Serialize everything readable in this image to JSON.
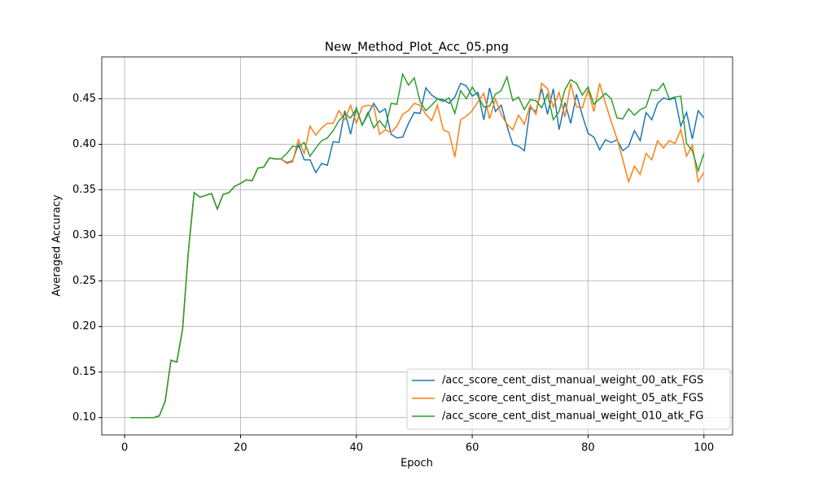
{
  "chart_data": {
    "type": "line",
    "title": "New_Method_Plot_Acc_05.png",
    "x_label": "Epoch",
    "y_label": "Averaged Accuracy",
    "x": [
      1,
      2,
      3,
      4,
      5,
      6,
      7,
      8,
      9,
      10,
      11,
      12,
      13,
      14,
      15,
      16,
      17,
      18,
      19,
      20,
      21,
      22,
      23,
      24,
      25,
      26,
      27,
      28,
      29,
      30,
      31,
      32,
      33,
      34,
      35,
      36,
      37,
      38,
      39,
      40,
      41,
      42,
      43,
      44,
      45,
      46,
      47,
      48,
      49,
      50,
      51,
      52,
      53,
      54,
      55,
      56,
      57,
      58,
      59,
      60,
      61,
      62,
      63,
      64,
      65,
      66,
      67,
      68,
      69,
      70,
      71,
      72,
      73,
      74,
      75,
      76,
      77,
      78,
      79,
      80,
      81,
      82,
      83,
      84,
      85,
      86,
      87,
      88,
      89,
      90,
      91,
      92,
      93,
      94,
      95,
      96,
      97,
      98,
      99,
      100
    ],
    "series": [
      {
        "name": "/acc_score_cent_dist_manual_weight_00_atk_FGS",
        "color": "#1f77b4",
        "values": [
          0.1,
          0.1,
          0.1,
          0.1,
          0.1,
          0.102,
          0.118,
          0.163,
          0.161,
          0.197,
          0.282,
          0.347,
          0.342,
          0.344,
          0.346,
          0.329,
          0.345,
          0.347,
          0.354,
          0.357,
          0.361,
          0.36,
          0.374,
          0.375,
          0.385,
          0.384,
          0.384,
          0.38,
          0.382,
          0.4,
          0.383,
          0.383,
          0.369,
          0.379,
          0.377,
          0.403,
          0.402,
          0.437,
          0.411,
          0.44,
          0.421,
          0.433,
          0.445,
          0.435,
          0.439,
          0.411,
          0.407,
          0.408,
          0.423,
          0.435,
          0.434,
          0.462,
          0.454,
          0.45,
          0.449,
          0.445,
          0.452,
          0.467,
          0.464,
          0.453,
          0.457,
          0.427,
          0.462,
          0.436,
          0.443,
          0.42,
          0.4,
          0.398,
          0.393,
          0.44,
          0.436,
          0.461,
          0.433,
          0.461,
          0.416,
          0.446,
          0.423,
          0.455,
          0.432,
          0.412,
          0.408,
          0.394,
          0.405,
          0.402,
          0.405,
          0.393,
          0.398,
          0.415,
          0.404,
          0.435,
          0.427,
          0.445,
          0.451,
          0.449,
          0.451,
          0.42,
          0.435,
          0.406,
          0.437,
          0.429
        ]
      },
      {
        "name": "/acc_score_cent_dist_manual_weight_05_atk_FGS",
        "color": "#ff7f0e",
        "values": [
          0.1,
          0.1,
          0.1,
          0.1,
          0.1,
          0.102,
          0.118,
          0.163,
          0.161,
          0.197,
          0.282,
          0.347,
          0.342,
          0.344,
          0.346,
          0.329,
          0.345,
          0.347,
          0.354,
          0.357,
          0.361,
          0.36,
          0.374,
          0.375,
          0.385,
          0.384,
          0.384,
          0.379,
          0.381,
          0.405,
          0.39,
          0.42,
          0.41,
          0.418,
          0.423,
          0.423,
          0.437,
          0.427,
          0.443,
          0.423,
          0.441,
          0.443,
          0.442,
          0.411,
          0.416,
          0.413,
          0.42,
          0.433,
          0.437,
          0.445,
          0.443,
          0.433,
          0.426,
          0.443,
          0.416,
          0.413,
          0.386,
          0.427,
          0.431,
          0.437,
          0.447,
          0.456,
          0.428,
          0.45,
          0.433,
          0.422,
          0.416,
          0.432,
          0.422,
          0.443,
          0.433,
          0.467,
          0.461,
          0.441,
          0.457,
          0.43,
          0.467,
          0.441,
          0.44,
          0.46,
          0.436,
          0.467,
          0.445,
          0.425,
          0.406,
          0.383,
          0.359,
          0.376,
          0.367,
          0.39,
          0.383,
          0.404,
          0.396,
          0.404,
          0.401,
          0.416,
          0.387,
          0.399,
          0.359,
          0.369
        ]
      },
      {
        "name": "/acc_score_cent_dist_manual_weight_010_atk_FG",
        "color": "#2ca02c",
        "values": [
          0.1,
          0.1,
          0.1,
          0.1,
          0.1,
          0.102,
          0.118,
          0.163,
          0.161,
          0.197,
          0.282,
          0.347,
          0.342,
          0.344,
          0.346,
          0.329,
          0.345,
          0.347,
          0.354,
          0.357,
          0.361,
          0.36,
          0.374,
          0.375,
          0.385,
          0.384,
          0.384,
          0.39,
          0.398,
          0.397,
          0.402,
          0.387,
          0.396,
          0.404,
          0.407,
          0.415,
          0.426,
          0.433,
          0.429,
          0.439,
          0.421,
          0.435,
          0.418,
          0.426,
          0.418,
          0.445,
          0.444,
          0.477,
          0.465,
          0.473,
          0.447,
          0.437,
          0.443,
          0.45,
          0.447,
          0.451,
          0.434,
          0.459,
          0.45,
          0.463,
          0.453,
          0.441,
          0.442,
          0.455,
          0.459,
          0.474,
          0.448,
          0.452,
          0.438,
          0.449,
          0.448,
          0.44,
          0.455,
          0.427,
          0.436,
          0.46,
          0.471,
          0.467,
          0.454,
          0.463,
          0.444,
          0.45,
          0.456,
          0.45,
          0.429,
          0.428,
          0.439,
          0.432,
          0.438,
          0.441,
          0.46,
          0.459,
          0.467,
          0.45,
          0.452,
          0.453,
          0.401,
          0.393,
          0.371,
          0.39
        ]
      }
    ],
    "xlim": [
      -3.95,
      104.95
    ],
    "ylim": [
      0.081,
      0.496
    ],
    "xticks": [
      0,
      20,
      40,
      60,
      80,
      100
    ],
    "yticks": [
      {
        "value": 0.1,
        "label": "0.10"
      },
      0.15,
      {
        "value": 0.2,
        "label": "0.20"
      },
      0.25,
      {
        "value": 0.3,
        "label": "0.30"
      },
      0.35,
      {
        "value": 0.4,
        "label": "0.40"
      },
      0.45
    ],
    "grid": true,
    "legend": "lower right"
  }
}
